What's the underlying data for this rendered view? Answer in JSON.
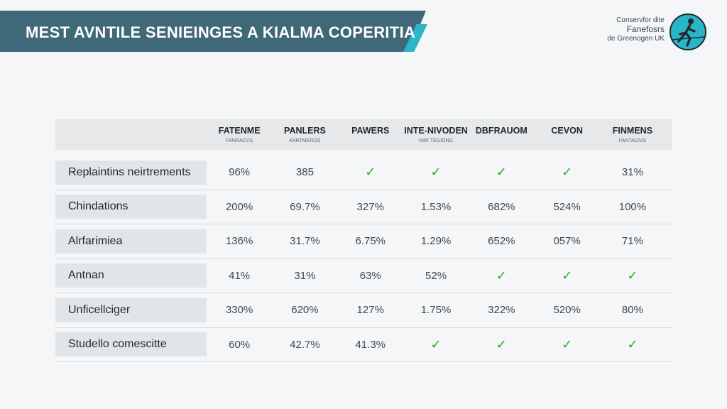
{
  "title": "MEST AVNTILE SENIEINGES A KIALMA COPERITIA",
  "logo": {
    "line1": "Conservfor dite",
    "line2": "Fanefosrs",
    "line3": "de Greenogen UK"
  },
  "colors": {
    "banner": "#3f6878",
    "accent": "#2bb5c9",
    "check": "#2fa829"
  },
  "columns": [
    {
      "name": "FATENME",
      "sub": "FANRACVS"
    },
    {
      "name": "PANLERS",
      "sub": "KARTMEROS"
    },
    {
      "name": "PAWERS",
      "sub": ""
    },
    {
      "name": "INTE-NIVODEN",
      "sub": "NIIR TEGIONG"
    },
    {
      "name": "DBFRAUOM",
      "sub": ""
    },
    {
      "name": "CEVON",
      "sub": ""
    },
    {
      "name": "FINMENS",
      "sub": "FANTACIVS"
    }
  ],
  "rows": [
    {
      "label": "Replaintins neirtrements",
      "cells": [
        "96%",
        "385",
        "check",
        "check",
        "check",
        "check",
        "31%"
      ]
    },
    {
      "label": "Chindations",
      "cells": [
        "200%",
        "69.7%",
        "327%",
        "1.53%",
        "682%",
        "524%",
        "100%"
      ]
    },
    {
      "label": "Alrfarimiea",
      "cells": [
        "136%",
        "31.7%",
        "6.75%",
        "1.29%",
        "652%",
        "057%",
        "71%"
      ]
    },
    {
      "label": "Antnan",
      "cells": [
        "41%",
        "31%",
        "63%",
        "52%",
        "check",
        "check",
        "check"
      ]
    },
    {
      "label": "Unficellciger",
      "cells": [
        "330%",
        "620%",
        "127%",
        "1.75%",
        "322%",
        "520%",
        "80%"
      ]
    },
    {
      "label": "Studello comescitte",
      "cells": [
        "60%",
        "42.7%",
        "41.3%",
        "check",
        "check",
        "check",
        "check"
      ]
    }
  ]
}
